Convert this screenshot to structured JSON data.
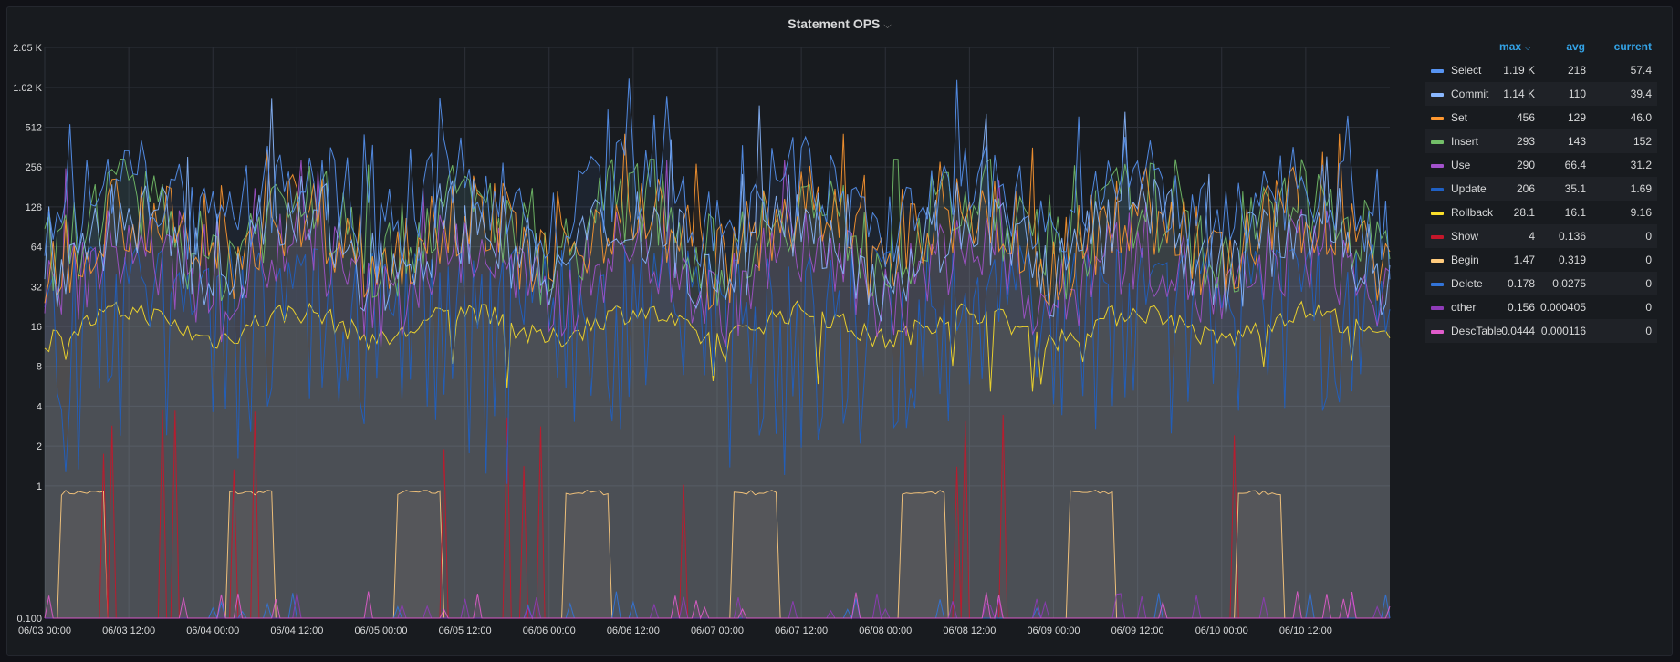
{
  "panel": {
    "title": "Statement OPS",
    "title_chevron": "⌵"
  },
  "legend": {
    "headers": {
      "max": "max",
      "max_sort": "⌵",
      "avg": "avg",
      "current": "current"
    }
  },
  "colors": {
    "background": "#181b1f",
    "grid": "#2c3038",
    "axis_text": "#d8d9da"
  },
  "chart_data": {
    "type": "area",
    "title": "Statement OPS",
    "yscale": "log2",
    "ylim": [
      0.1,
      2050
    ],
    "yticks": [
      {
        "v": 0.1,
        "label": "0.100"
      },
      {
        "v": 1,
        "label": "1"
      },
      {
        "v": 2,
        "label": "2"
      },
      {
        "v": 4,
        "label": "4"
      },
      {
        "v": 8,
        "label": "8"
      },
      {
        "v": 16,
        "label": "16"
      },
      {
        "v": 32,
        "label": "32"
      },
      {
        "v": 64,
        "label": "64"
      },
      {
        "v": 128,
        "label": "128"
      },
      {
        "v": 256,
        "label": "256"
      },
      {
        "v": 512,
        "label": "512"
      },
      {
        "v": 1020,
        "label": "1.02 K"
      },
      {
        "v": 2050,
        "label": "2.05 K"
      }
    ],
    "x_hours_range": [
      0,
      192
    ],
    "xticks": [
      {
        "h": 0,
        "label": "06/03 00:00"
      },
      {
        "h": 12,
        "label": "06/03 12:00"
      },
      {
        "h": 24,
        "label": "06/04 00:00"
      },
      {
        "h": 36,
        "label": "06/04 12:00"
      },
      {
        "h": 48,
        "label": "06/05 00:00"
      },
      {
        "h": 60,
        "label": "06/05 12:00"
      },
      {
        "h": 72,
        "label": "06/06 00:00"
      },
      {
        "h": 84,
        "label": "06/06 12:00"
      },
      {
        "h": 96,
        "label": "06/07 00:00"
      },
      {
        "h": 108,
        "label": "06/07 12:00"
      },
      {
        "h": 120,
        "label": "06/08 00:00"
      },
      {
        "h": 132,
        "label": "06/08 12:00"
      },
      {
        "h": 144,
        "label": "06/09 00:00"
      },
      {
        "h": 156,
        "label": "06/09 12:00"
      },
      {
        "h": 168,
        "label": "06/10 00:00"
      },
      {
        "h": 180,
        "label": "06/10 12:00"
      }
    ],
    "series": [
      {
        "name": "Select",
        "color": "#5794f2",
        "max": "1.19 K",
        "avg": "218",
        "current": "57.4"
      },
      {
        "name": "Commit",
        "color": "#8ab8ff",
        "max": "1.14 K",
        "avg": "110",
        "current": "39.4"
      },
      {
        "name": "Set",
        "color": "#ff9830",
        "max": "456",
        "avg": "129",
        "current": "46.0"
      },
      {
        "name": "Insert",
        "color": "#73bf69",
        "max": "293",
        "avg": "143",
        "current": "152"
      },
      {
        "name": "Use",
        "color": "#a352cc",
        "max": "290",
        "avg": "66.4",
        "current": "31.2"
      },
      {
        "name": "Update",
        "color": "#1f60c4",
        "max": "206",
        "avg": "35.1",
        "current": "1.69"
      },
      {
        "name": "Rollback",
        "color": "#fade2a",
        "max": "28.1",
        "avg": "16.1",
        "current": "9.16"
      },
      {
        "name": "Show",
        "color": "#c4162a",
        "max": "4",
        "avg": "0.136",
        "current": "0"
      },
      {
        "name": "Begin",
        "color": "#ffcb7d",
        "max": "1.47",
        "avg": "0.319",
        "current": "0"
      },
      {
        "name": "Delete",
        "color": "#3274d9",
        "max": "0.178",
        "avg": "0.0275",
        "current": "0"
      },
      {
        "name": "other",
        "color": "#8f3bb8",
        "max": "0.156",
        "avg": "0.000405",
        "current": "0"
      },
      {
        "name": "DescTable",
        "color": "#e05ccb",
        "max": "0.0444",
        "avg": "0.000116",
        "current": "0"
      }
    ]
  }
}
